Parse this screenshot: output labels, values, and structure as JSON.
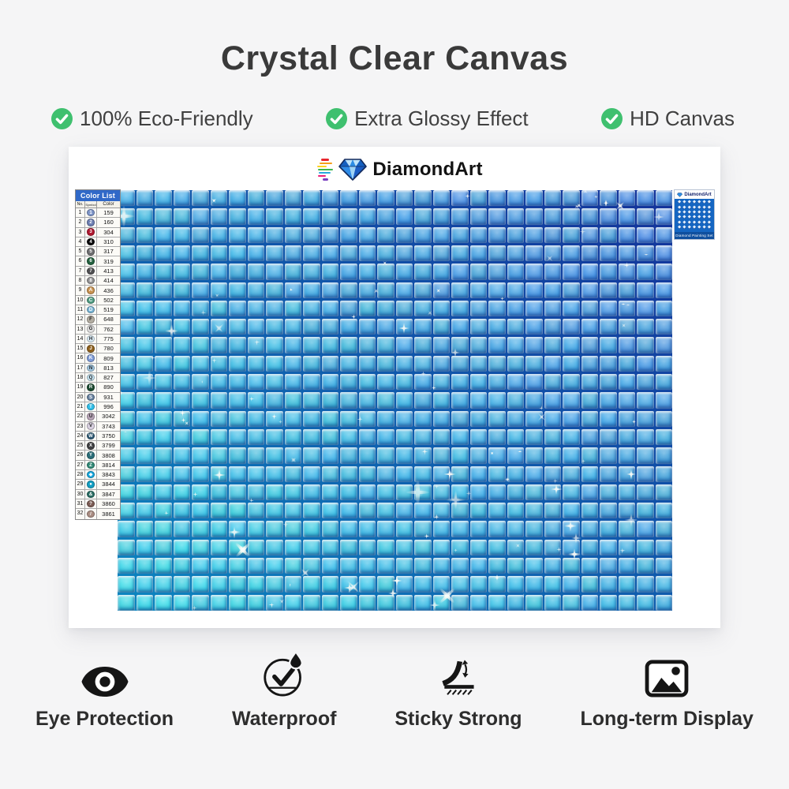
{
  "page": {
    "background": "#f5f5f6",
    "sheet_background": "#ffffff"
  },
  "header": {
    "title": "Crystal Clear Canvas",
    "check_color": "#3fc06f",
    "features": [
      "100% Eco-Friendly",
      "Extra Glossy Effect",
      "HD Canvas"
    ]
  },
  "canvas": {
    "logo": {
      "text": "DiamondArt",
      "stripe_colors": [
        "#e8262d",
        "#f59e1b",
        "#ffd21e",
        "#3cb54a",
        "#29a8e0",
        "#ec1e79",
        "#7a3fc0"
      ]
    },
    "color_list": {
      "title": "Color List",
      "columns": [
        "No.",
        "Symbol",
        "Color"
      ],
      "header_bg": "#3069c8",
      "rows": [
        {
          "no": 1,
          "symbol": "1",
          "hex": "#7e95c8",
          "code": "159"
        },
        {
          "no": 2,
          "symbol": "2",
          "hex": "#6d7fb2",
          "code": "160"
        },
        {
          "no": 3,
          "symbol": "3",
          "hex": "#b01830",
          "code": "304"
        },
        {
          "no": 4,
          "symbol": "4",
          "hex": "#0a0a0a",
          "code": "310"
        },
        {
          "no": 5,
          "symbol": "5",
          "hex": "#6e6e70",
          "code": "317"
        },
        {
          "no": 6,
          "symbol": "6",
          "hex": "#23613f",
          "code": "319"
        },
        {
          "no": 7,
          "symbol": "7",
          "hex": "#505052",
          "code": "413"
        },
        {
          "no": 8,
          "symbol": "8",
          "hex": "#909092",
          "code": "414"
        },
        {
          "no": 9,
          "symbol": "A",
          "hex": "#c89250",
          "code": "436"
        },
        {
          "no": 10,
          "symbol": "C",
          "hex": "#4f9c82",
          "code": "502"
        },
        {
          "no": 11,
          "symbol": "D",
          "hex": "#79b4d4",
          "code": "519"
        },
        {
          "no": 12,
          "symbol": "F",
          "hex": "#b4aea2",
          "code": "648"
        },
        {
          "no": 13,
          "symbol": "G",
          "hex": "#dedede",
          "code": "762"
        },
        {
          "no": 14,
          "symbol": "H",
          "hex": "#d8eaf4",
          "code": "775"
        },
        {
          "no": 15,
          "symbol": "J",
          "hex": "#8f611d",
          "code": "780"
        },
        {
          "no": 16,
          "symbol": "K",
          "hex": "#7f9cd8",
          "code": "809"
        },
        {
          "no": 17,
          "symbol": "N",
          "hex": "#a0c6e0",
          "code": "813"
        },
        {
          "no": 18,
          "symbol": "Q",
          "hex": "#c4e2f0",
          "code": "827"
        },
        {
          "no": 19,
          "symbol": "R",
          "hex": "#1b4a30",
          "code": "890"
        },
        {
          "no": 20,
          "symbol": "S",
          "hex": "#66809e",
          "code": "931"
        },
        {
          "no": 21,
          "symbol": "T",
          "hex": "#30bfe9",
          "code": "996"
        },
        {
          "no": 22,
          "symbol": "U",
          "hex": "#b7a4b6",
          "code": "3042"
        },
        {
          "no": 23,
          "symbol": "V",
          "hex": "#d8d0e0",
          "code": "3743"
        },
        {
          "no": 24,
          "symbol": "W",
          "hex": "#2e5a74",
          "code": "3750"
        },
        {
          "no": 25,
          "symbol": "X",
          "hex": "#404042",
          "code": "3799"
        },
        {
          "no": 26,
          "symbol": "Y",
          "hex": "#2a6e78",
          "code": "3808"
        },
        {
          "no": 27,
          "symbol": "Z",
          "hex": "#318a76",
          "code": "3814"
        },
        {
          "no": 28,
          "symbol": "◆",
          "hex": "#18a8de",
          "code": "3843"
        },
        {
          "no": 29,
          "symbol": "●",
          "hex": "#129ec2",
          "code": "3844"
        },
        {
          "no": 30,
          "symbol": "&",
          "hex": "#2a6e64",
          "code": "3847"
        },
        {
          "no": 31,
          "symbol": "?",
          "hex": "#7c5c54",
          "code": "3860"
        },
        {
          "no": 32,
          "symbol": "/",
          "hex": "#aa8d82",
          "code": "3861"
        }
      ]
    },
    "grid": {
      "cols": 30,
      "rows": 23,
      "tile_top_right": "#5293e0",
      "tile_bottom_left": "#3fd9e6",
      "grout_top_right": "#14329a",
      "grout_bottom_left": "#0c86c0"
    },
    "tag": {
      "brand": "DiamondArt",
      "caption": "Diamond Painting Set",
      "bg": "#1566c2",
      "caption_bg": "#0f4f9e"
    }
  },
  "footer": {
    "items": [
      {
        "icon": "eye-icon",
        "label": "Eye Protection"
      },
      {
        "icon": "waterproof-icon",
        "label": "Waterproof"
      },
      {
        "icon": "sticky-strong-icon",
        "label": "Sticky Strong"
      },
      {
        "icon": "long-term-display-icon",
        "label": "Long-term Display"
      }
    ]
  }
}
